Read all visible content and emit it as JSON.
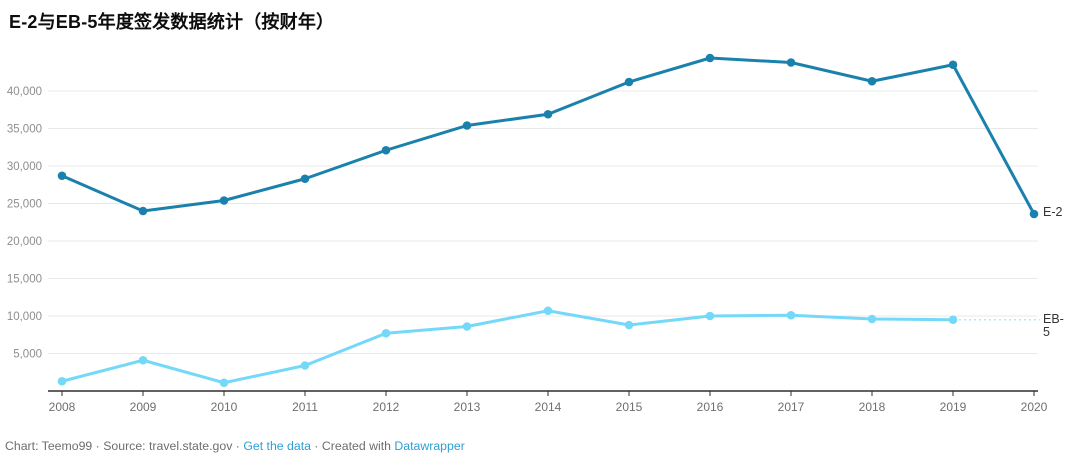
{
  "title": "E-2与EB-5年度签发数据统计（按财年）",
  "footer": {
    "credit": "Chart: Teemo99 · Source: travel.state.gov · ",
    "get_data_label": "Get the data",
    "between": " · Created with ",
    "datawrapper_label": "Datawrapper"
  },
  "colors": {
    "e2_line": "#1a81ad",
    "eb5_line": "#74d9f8",
    "eb5_connector": "#aee7fa",
    "grid": "#e9e9e9",
    "axis": "#2e2e2e",
    "x_tick_label": "#6f6f6f",
    "y_tick_label": "#8e8e8e",
    "series_label": "#333333",
    "footer_text": "#6e6e6e",
    "link": "#2e9fd4"
  },
  "chart_data": {
    "type": "line",
    "title": "E-2与EB-5年度签发数据统计（按财年）",
    "x": [
      2008,
      2009,
      2010,
      2011,
      2012,
      2013,
      2014,
      2015,
      2016,
      2017,
      2018,
      2019,
      2020
    ],
    "xlabel": "",
    "ylabel": "",
    "ylim": [
      0,
      46000
    ],
    "yticks": [
      5000,
      10000,
      15000,
      20000,
      25000,
      30000,
      35000,
      40000
    ],
    "grid": "horizontal",
    "legend": "direct line-end labels (E-2, EB-5)",
    "series": [
      {
        "name": "E-2",
        "color": "#1a81ad",
        "values": [
          28700,
          24000,
          25400,
          28300,
          32100,
          35400,
          36900,
          41200,
          44400,
          43800,
          41300,
          43500,
          23600
        ]
      },
      {
        "name": "EB-5",
        "color": "#74d9f8",
        "values": [
          1300,
          4100,
          1100,
          3400,
          7700,
          8600,
          10700,
          8800,
          10000,
          10100,
          9600,
          9500,
          null
        ],
        "label_connector": "dotted"
      }
    ]
  }
}
